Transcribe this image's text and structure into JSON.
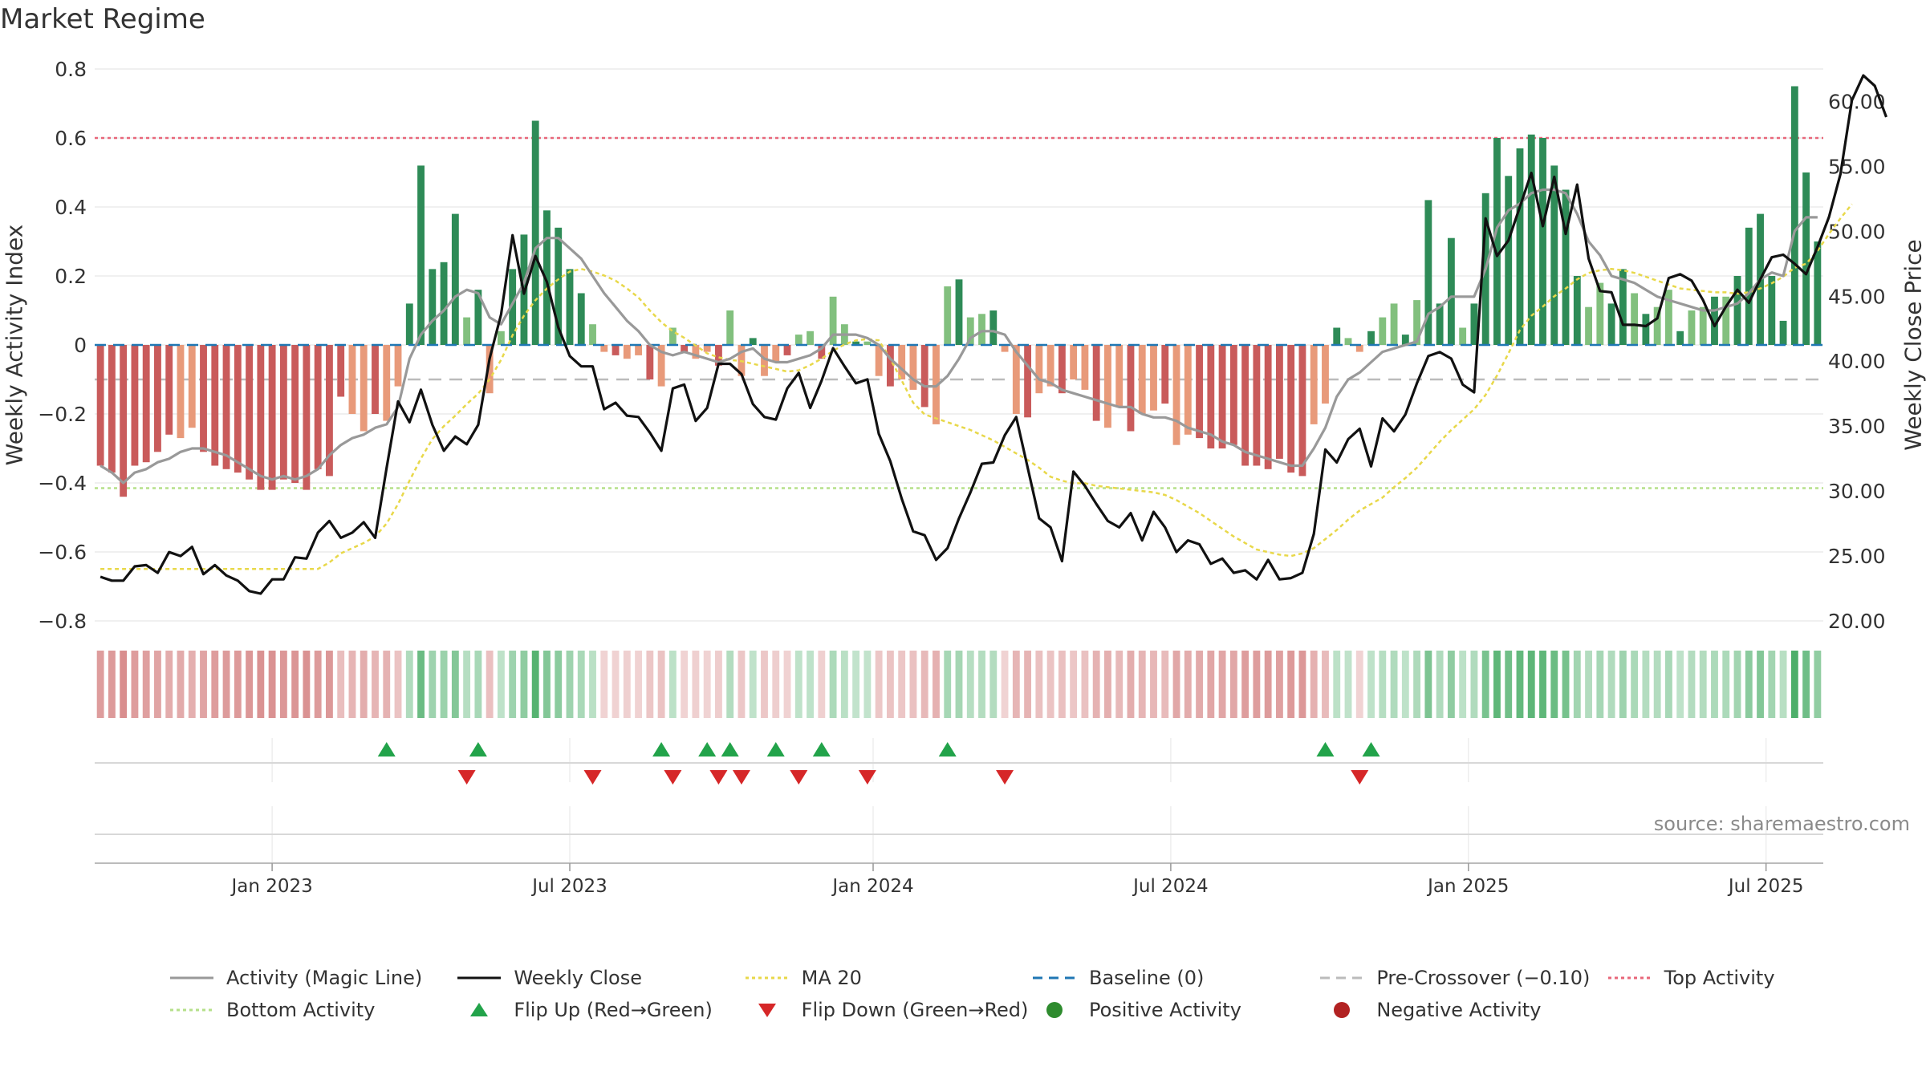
{
  "title": "Market Regime",
  "source_note": "source: sharemaestro.com",
  "colors": {
    "strong_green": "#2e8b57",
    "light_green": "#82c07e",
    "strong_red": "#c95b5b",
    "light_red": "#e89a7a",
    "magic_line": "#999999",
    "close_line": "#111111",
    "ma_line": "#e8d84a",
    "baseline": "#1f77b4",
    "pre_crossover": "#bbbbbb",
    "top_activity": "#e8677a",
    "bottom_activity": "#b5e08a",
    "flip_up": "#22a34a",
    "flip_down": "#d62728",
    "positive": "#2e8b2e",
    "negative": "#b22222"
  },
  "legend": [
    {
      "label": "Activity (Magic Line)",
      "kind": "line",
      "color": "#999999",
      "dash": ""
    },
    {
      "label": "Weekly Close",
      "kind": "line",
      "color": "#111111",
      "dash": ""
    },
    {
      "label": "MA 20",
      "kind": "line",
      "color": "#e8d84a",
      "dash": "4,4"
    },
    {
      "label": "Baseline (0)",
      "kind": "line",
      "color": "#1f77b4",
      "dash": "12,8"
    },
    {
      "label": "Pre-Crossover (−0.10)",
      "kind": "line",
      "color": "#bbbbbb",
      "dash": "12,8"
    },
    {
      "label": "Top Activity",
      "kind": "line",
      "color": "#e8677a",
      "dash": "4,4"
    },
    {
      "label": "Bottom Activity",
      "kind": "line",
      "color": "#b5e08a",
      "dash": "4,4"
    },
    {
      "label": "Flip Up (Red→Green)",
      "kind": "tri-up",
      "color": "#22a34a",
      "dash": ""
    },
    {
      "label": "Flip Down (Green→Red)",
      "kind": "tri-down",
      "color": "#d62728",
      "dash": ""
    },
    {
      "label": "Positive Activity",
      "kind": "dot",
      "color": "#2e8b2e",
      "dash": ""
    },
    {
      "label": "Negative Activity",
      "kind": "dot",
      "color": "#b22222",
      "dash": ""
    }
  ],
  "chart_data": {
    "type": "bar",
    "title": "Market Regime",
    "ylabel_left": "Weekly Activity Index",
    "ylabel_right": "Weekly Close Price",
    "ylim_left": [
      -0.8,
      0.8
    ],
    "ylim_right": [
      20,
      62.5
    ],
    "yticks_left": [
      "0.8",
      "0.6",
      "0.4",
      "0.2",
      "0",
      "−0.2",
      "−0.4",
      "−0.6",
      "−0.8"
    ],
    "yticks_left_values": [
      0.8,
      0.6,
      0.4,
      0.2,
      0,
      -0.2,
      -0.4,
      -0.6,
      -0.8
    ],
    "yticks_right": [
      "60.00",
      "55.00",
      "50.00",
      "45.00",
      "40.00",
      "35.00",
      "30.00",
      "25.00",
      "20.00"
    ],
    "yticks_right_values": [
      60,
      55,
      50,
      45,
      40,
      35,
      30,
      25,
      20
    ],
    "xticks": [
      "Jan 2023",
      "Jul 2023",
      "Jan 2024",
      "Jul 2024",
      "Jan 2025",
      "Jul 2025"
    ],
    "xticks_week_index": [
      15,
      41,
      67.5,
      93.5,
      119.5,
      145.5
    ],
    "reference_lines": {
      "top_activity": 0.6,
      "bottom_activity": -0.415,
      "baseline": 0,
      "pre_crossover": -0.1
    },
    "grid": true,
    "legend_position": "bottom",
    "activity": [
      -0.35,
      -0.37,
      -0.44,
      -0.35,
      -0.34,
      -0.31,
      -0.26,
      -0.27,
      -0.24,
      -0.31,
      -0.35,
      -0.36,
      -0.37,
      -0.39,
      -0.42,
      -0.42,
      -0.39,
      -0.4,
      -0.42,
      -0.36,
      -0.38,
      -0.15,
      -0.2,
      -0.25,
      -0.2,
      -0.22,
      -0.12,
      0.12,
      0.52,
      0.22,
      0.24,
      0.38,
      0.08,
      0.16,
      -0.14,
      0.04,
      0.22,
      0.32,
      0.65,
      0.39,
      0.34,
      0.22,
      0.15,
      0.06,
      -0.02,
      -0.03,
      -0.04,
      -0.03,
      -0.1,
      -0.12,
      0.05,
      -0.02,
      -0.04,
      -0.02,
      -0.06,
      0.1,
      -0.09,
      0.02,
      -0.09,
      -0.05,
      -0.03,
      0.03,
      0.04,
      -0.04,
      0.14,
      0.06,
      0.01,
      0.01,
      -0.09,
      -0.12,
      -0.1,
      -0.13,
      -0.18,
      -0.23,
      0.17,
      0.19,
      0.08,
      0.09,
      0.1,
      -0.02,
      -0.2,
      -0.21,
      -0.14,
      -0.12,
      -0.14,
      -0.1,
      -0.13,
      -0.22,
      -0.24,
      -0.18,
      -0.25,
      -0.2,
      -0.19,
      -0.17,
      -0.29,
      -0.26,
      -0.27,
      -0.3,
      -0.3,
      -0.29,
      -0.35,
      -0.35,
      -0.36,
      -0.33,
      -0.37,
      -0.38,
      -0.23,
      -0.17,
      0.05,
      0.02,
      -0.02,
      0.04,
      0.08,
      0.12,
      0.03,
      0.13,
      0.42,
      0.12,
      0.31,
      0.05,
      0.12,
      0.44,
      0.6,
      0.49,
      0.57,
      0.61,
      0.6,
      0.52,
      0.45,
      0.2,
      0.11,
      0.18,
      0.12,
      0.22,
      0.15,
      0.09,
      0.11,
      0.16,
      0.04,
      0.1,
      0.11,
      0.14,
      0.14,
      0.2,
      0.34,
      0.38,
      0.2,
      0.07,
      0.75,
      0.5,
      0.3
    ],
    "close": [
      23.4,
      23.1,
      23.1,
      24.2,
      24.3,
      23.7,
      25.3,
      25,
      25.7,
      23.6,
      24.3,
      23.5,
      23.1,
      22.3,
      22.1,
      23.2,
      23.2,
      24.9,
      24.8,
      26.8,
      27.7,
      26.4,
      26.8,
      27.6,
      26.4,
      31.8,
      36.9,
      35.3,
      37.8,
      35.1,
      33.1,
      34.2,
      33.6,
      35.1,
      40.2,
      43.6,
      49.7,
      45.2,
      48.1,
      46.1,
      42.6,
      40.4,
      39.6,
      39.6,
      36.3,
      36.8,
      35.8,
      35.7,
      34.5,
      33.1,
      37.9,
      38.2,
      35.4,
      36.4,
      39.8,
      39.8,
      39,
      36.7,
      35.7,
      35.5,
      37.9,
      39.1,
      36.4,
      38.5,
      41,
      39.6,
      38.3,
      38.6,
      34.4,
      32.3,
      29.4,
      26.9,
      26.6,
      24.7,
      25.6,
      27.9,
      29.9,
      32.1,
      32.2,
      34.3,
      35.7,
      31.8,
      27.9,
      27.2,
      24.6,
      31.5,
      30.4,
      29,
      27.7,
      27.2,
      28.3,
      26.2,
      28.4,
      27.2,
      25.3,
      26.2,
      25.9,
      24.4,
      24.8,
      23.7,
      23.9,
      23.2,
      24.7,
      23.2,
      23.3,
      23.7,
      26.7,
      33.2,
      32.2,
      34,
      34.8,
      31.9,
      35.6,
      34.6,
      35.9,
      38.3,
      40.4,
      40.7,
      40.2,
      38.2,
      37.6,
      51,
      48.1,
      49.3,
      51.9,
      54.5,
      50.4,
      54.2,
      49.8,
      53.6,
      47.9,
      45.4,
      45.3,
      42.8,
      42.8,
      42.7,
      43.3,
      46.4,
      46.7,
      46.2,
      44.7,
      42.7,
      44.2,
      45.5,
      44.5,
      46.3,
      48,
      48.2,
      47.5,
      46.7,
      48.8,
      51.1,
      54.4,
      60.1,
      62,
      61.2,
      58.8
    ],
    "magic_line": [
      -0.35,
      -0.37,
      -0.4,
      -0.37,
      -0.36,
      -0.34,
      -0.33,
      -0.31,
      -0.3,
      -0.3,
      -0.31,
      -0.32,
      -0.34,
      -0.36,
      -0.38,
      -0.39,
      -0.38,
      -0.39,
      -0.38,
      -0.36,
      -0.32,
      -0.29,
      -0.27,
      -0.26,
      -0.24,
      -0.23,
      -0.18,
      -0.04,
      0.03,
      0.07,
      0.1,
      0.14,
      0.16,
      0.15,
      0.08,
      0.06,
      0.12,
      0.18,
      0.28,
      0.31,
      0.31,
      0.28,
      0.25,
      0.2,
      0.15,
      0.11,
      0.07,
      0.04,
      0.0,
      -0.02,
      -0.03,
      -0.02,
      -0.03,
      -0.04,
      -0.05,
      -0.04,
      -0.02,
      -0.01,
      -0.04,
      -0.05,
      -0.05,
      -0.04,
      -0.03,
      -0.01,
      0.03,
      0.03,
      0.03,
      0.02,
      0.0,
      -0.04,
      -0.07,
      -0.1,
      -0.12,
      -0.12,
      -0.09,
      -0.04,
      0.02,
      0.04,
      0.04,
      0.03,
      -0.02,
      -0.06,
      -0.1,
      -0.11,
      -0.13,
      -0.14,
      -0.15,
      -0.16,
      -0.17,
      -0.18,
      -0.18,
      -0.2,
      -0.21,
      -0.21,
      -0.22,
      -0.24,
      -0.25,
      -0.26,
      -0.28,
      -0.29,
      -0.31,
      -0.32,
      -0.33,
      -0.34,
      -0.35,
      -0.35,
      -0.3,
      -0.24,
      -0.15,
      -0.1,
      -0.08,
      -0.05,
      -0.02,
      -0.01,
      0.0,
      0.01,
      0.09,
      0.11,
      0.14,
      0.14,
      0.14,
      0.22,
      0.34,
      0.39,
      0.41,
      0.44,
      0.45,
      0.45,
      0.44,
      0.38,
      0.3,
      0.26,
      0.2,
      0.19,
      0.18,
      0.16,
      0.14,
      0.13,
      0.12,
      0.11,
      0.1,
      0.1,
      0.11,
      0.12,
      0.15,
      0.19,
      0.21,
      0.2,
      0.33,
      0.37,
      0.37
    ],
    "ma20": [
      24,
      24,
      24,
      24,
      24,
      24,
      24,
      24,
      24,
      24,
      24,
      24,
      24,
      24,
      24,
      24,
      24,
      24,
      24,
      24,
      24.5,
      25.2,
      25.6,
      26,
      26.5,
      27.5,
      29,
      30.8,
      32.5,
      34,
      35,
      35.8,
      36.7,
      37.5,
      38.6,
      40.1,
      42,
      43.5,
      44.7,
      45.6,
      46.3,
      46.9,
      47.1,
      46.9,
      46.6,
      46.2,
      45.6,
      44.9,
      43.9,
      43,
      42.3,
      41.8,
      41.2,
      40.6,
      40.3,
      40.1,
      40,
      39.8,
      39.6,
      39.4,
      39.2,
      39.3,
      39.7,
      40.2,
      40.8,
      41.3,
      41.6,
      41.7,
      41.6,
      40.2,
      38.5,
      36.8,
      35.9,
      35.6,
      35.3,
      35,
      34.7,
      34.3,
      33.9,
      33.4,
      32.9,
      32.4,
      31.8,
      31.1,
      30.8,
      30.6,
      30.6,
      30.4,
      30.3,
      30.2,
      30.1,
      30,
      29.9,
      29.7,
      29.3,
      28.8,
      28.3,
      27.7,
      27.1,
      26.5,
      26,
      25.5,
      25.3,
      25.1,
      25,
      25.2,
      25.6,
      26.3,
      27,
      27.8,
      28.5,
      29,
      29.5,
      30.3,
      31,
      31.8,
      32.8,
      33.8,
      34.7,
      35.5,
      36.3,
      37.4,
      38.9,
      40.6,
      42.4,
      43.5,
      44.2,
      45,
      45.6,
      46.3,
      46.8,
      47,
      47.1,
      47,
      46.8,
      46.5,
      46.2,
      45.9,
      45.6,
      45.5,
      45.4,
      45.3,
      45.3,
      45.2,
      45.3,
      45.6,
      46,
      46.5,
      47.2,
      47.5,
      48.5,
      49.8,
      51,
      52.1
    ],
    "flip_up_weeks": [
      25,
      33,
      49,
      53,
      55,
      59,
      63,
      74,
      107,
      111
    ],
    "flip_down_weeks": [
      32,
      43,
      50,
      54,
      56,
      61,
      67,
      79,
      110
    ]
  }
}
